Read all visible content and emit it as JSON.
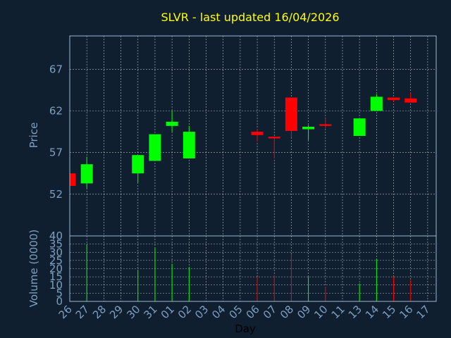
{
  "chart_data": {
    "type": "candlestick",
    "title": "SLVR - last updated 16/04/2026",
    "xlabel": "Day",
    "price_panel": {
      "ylabel": "Price",
      "ylim": [
        47,
        71
      ],
      "yticks": [
        52,
        57,
        62,
        67
      ],
      "grid": true
    },
    "volume_panel": {
      "ylabel": "Volume (0000)",
      "ylim": [
        0,
        40
      ],
      "yticks": [
        0,
        5,
        10,
        15,
        20,
        25,
        30,
        35,
        40
      ],
      "grid": true
    },
    "days": [
      "26",
      "27",
      "28",
      "29",
      "30",
      "31",
      "01",
      "02",
      "03",
      "04",
      "05",
      "06",
      "07",
      "08",
      "09",
      "10",
      "11",
      "13",
      "14",
      "15",
      "16",
      "17"
    ],
    "candles": [
      {
        "day": "26",
        "open": 54.5,
        "high": 54.5,
        "low": 53.0,
        "close": 53.0,
        "volume": 0
      },
      {
        "day": "27",
        "open": 53.3,
        "high": 56.5,
        "low": 52.7,
        "close": 55.6,
        "volume": 35
      },
      {
        "day": "30",
        "open": 54.5,
        "high": 56.7,
        "low": 53.4,
        "close": 56.7,
        "volume": 19
      },
      {
        "day": "31",
        "open": 56.0,
        "high": 59.2,
        "low": 56.0,
        "close": 59.2,
        "volume": 33
      },
      {
        "day": "01",
        "open": 60.2,
        "high": 62.0,
        "low": 59.5,
        "close": 60.7,
        "volume": 23
      },
      {
        "day": "02",
        "open": 56.3,
        "high": 60.2,
        "low": 56.3,
        "close": 59.5,
        "volume": 21
      },
      {
        "day": "06",
        "open": 59.5,
        "high": 59.8,
        "low": 58.3,
        "close": 59.1,
        "volume": 15
      },
      {
        "day": "07",
        "open": 58.9,
        "high": 58.9,
        "low": 56.3,
        "close": 58.7,
        "volume": 16
      },
      {
        "day": "08",
        "open": 63.6,
        "high": 63.6,
        "low": 58.8,
        "close": 59.6,
        "volume": 29
      },
      {
        "day": "09",
        "open": 59.8,
        "high": 60.3,
        "low": 58.5,
        "close": 60.1,
        "volume": 15
      },
      {
        "day": "10",
        "open": 60.4,
        "high": 61.1,
        "low": 59.9,
        "close": 60.2,
        "volume": 9
      },
      {
        "day": "13",
        "open": 59.0,
        "high": 61.1,
        "low": 59.0,
        "close": 61.1,
        "volume": 11
      },
      {
        "day": "14",
        "open": 62.0,
        "high": 64.0,
        "low": 62.0,
        "close": 63.7,
        "volume": 26
      },
      {
        "day": "15",
        "open": 63.6,
        "high": 63.6,
        "low": 63.1,
        "close": 63.3,
        "volume": 15
      },
      {
        "day": "16",
        "open": 63.5,
        "high": 64.2,
        "low": 63.0,
        "close": 63.0,
        "volume": 13
      }
    ],
    "colors": {
      "up": "#00ff00",
      "down": "#ff0000",
      "background": "#0f1f30",
      "title": "#ffff00",
      "axis_text": "#7f9fbf"
    }
  }
}
